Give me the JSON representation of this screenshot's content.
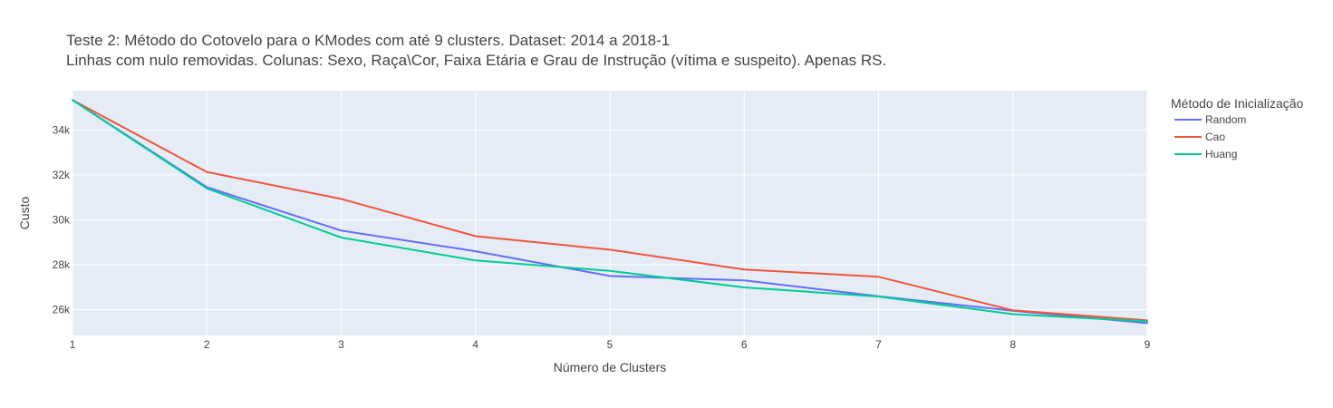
{
  "chart_data": {
    "type": "line",
    "title_lines": [
      "Teste 2: Método do Cotovelo para o KModes com até 9 clusters. Dataset: 2014 a 2018-1",
      "Linhas com nulo removidas. Colunas: Sexo, Raça\\Cor, Faixa Etária e Grau de Instrução (vítima e suspeito). Apenas RS."
    ],
    "xlabel": "Número de Clusters",
    "ylabel": "Custo",
    "xlim": [
      1,
      9
    ],
    "ylim": [
      24850,
      35750
    ],
    "x_ticks": [
      1,
      2,
      3,
      4,
      5,
      6,
      7,
      8,
      9
    ],
    "x_tick_labels": [
      "1",
      "2",
      "3",
      "4",
      "5",
      "6",
      "7",
      "8",
      "9"
    ],
    "y_ticks": [
      26000,
      28000,
      30000,
      32000,
      34000
    ],
    "y_tick_labels": [
      "26k",
      "28k",
      "30k",
      "32k",
      "34k"
    ],
    "grid": true,
    "plot_background": "#E5ECF6",
    "legend": {
      "title": "Método de Inicialização",
      "placement": "right"
    },
    "x": [
      1,
      2,
      3,
      4,
      5,
      6,
      7,
      8,
      9
    ],
    "series": [
      {
        "name": "Random",
        "color": "#636EFA",
        "values": [
          35330,
          31450,
          29520,
          28600,
          27500,
          27300,
          26600,
          25950,
          25400
        ]
      },
      {
        "name": "Cao",
        "color": "#EF553B",
        "values": [
          35330,
          32130,
          30930,
          29270,
          28670,
          27790,
          27460,
          25970,
          25520
        ]
      },
      {
        "name": "Huang",
        "color": "#00CC96",
        "values": [
          35330,
          31400,
          29210,
          28190,
          27730,
          26990,
          26580,
          25800,
          25480
        ]
      }
    ]
  }
}
